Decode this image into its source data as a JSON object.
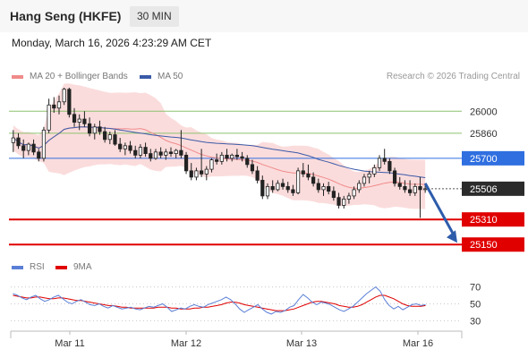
{
  "header": {
    "title": "Hang Seng (HKFE)",
    "timeframe": "30 MIN"
  },
  "timestamp": "Monday, March 16, 2026 4:23:29 AM CET",
  "legend": {
    "bollinger": "MA 20 + Bollinger Bands",
    "ma50": "MA 50",
    "copyright": "Research © 2026 Trading Central",
    "rsi": "RSI",
    "rsi_ma": "9MA"
  },
  "colors": {
    "resistance": "#8dc26f",
    "pivot": "#2f6fe0",
    "support": "#e00000",
    "bollinger_fill": "#fbdcdc",
    "ma20": "#f08a8a",
    "ma50": "#3a5aa8",
    "bull": "#ffffff",
    "bear": "#222222",
    "rsi": "#5b7fd6",
    "rsi_ma": "#e00000",
    "arrow": "#2d5cab"
  },
  "chart_data": [
    {
      "type": "candlestick",
      "x_ticks": [
        "Mar 11",
        "Mar 12",
        "Mar 13",
        "Mar 16"
      ],
      "y_range": [
        25100,
        26150
      ],
      "levels": [
        {
          "value": 26000,
          "label": "26000",
          "kind": "resistance"
        },
        {
          "value": 25860,
          "label": "25860",
          "kind": "resistance"
        },
        {
          "value": 25700,
          "label": "25700",
          "kind": "pivot"
        },
        {
          "value": 25506,
          "label": "25506",
          "kind": "last"
        },
        {
          "value": 25310,
          "label": "25310",
          "kind": "support"
        },
        {
          "value": 25150,
          "label": "25150",
          "kind": "support"
        }
      ],
      "last_price": 25506,
      "forecast_target": 25150,
      "candles": [
        [
          25800,
          25880,
          25740,
          25830
        ],
        [
          25830,
          25860,
          25760,
          25780
        ],
        [
          25780,
          25820,
          25700,
          25750
        ],
        [
          25750,
          25800,
          25720,
          25790
        ],
        [
          25790,
          25820,
          25720,
          25740
        ],
        [
          25740,
          25760,
          25680,
          25700
        ],
        [
          25700,
          25900,
          25680,
          25880
        ],
        [
          25880,
          26080,
          25860,
          26040
        ],
        [
          26040,
          26090,
          25990,
          26020
        ],
        [
          26020,
          26100,
          25980,
          26060
        ],
        [
          26060,
          26150,
          26040,
          26140
        ],
        [
          26140,
          26150,
          25960,
          25980
        ],
        [
          25980,
          26020,
          25900,
          25930
        ],
        [
          25930,
          25980,
          25880,
          25950
        ],
        [
          25950,
          26000,
          25900,
          25920
        ],
        [
          25920,
          25960,
          25840,
          25860
        ],
        [
          25860,
          25920,
          25820,
          25900
        ],
        [
          25900,
          25940,
          25850,
          25870
        ],
        [
          25870,
          25900,
          25800,
          25820
        ],
        [
          25820,
          25870,
          25790,
          25850
        ],
        [
          25850,
          25880,
          25780,
          25790
        ],
        [
          25790,
          25830,
          25740,
          25760
        ],
        [
          25760,
          25800,
          25720,
          25780
        ],
        [
          25780,
          25810,
          25730,
          25750
        ],
        [
          25750,
          25780,
          25700,
          25720
        ],
        [
          25720,
          25790,
          25700,
          25770
        ],
        [
          25770,
          25800,
          25710,
          25730
        ],
        [
          25730,
          25760,
          25680,
          25700
        ],
        [
          25700,
          25760,
          25690,
          25740
        ],
        [
          25740,
          25770,
          25700,
          25720
        ],
        [
          25720,
          25760,
          25690,
          25740
        ],
        [
          25740,
          25770,
          25710,
          25730
        ],
        [
          25730,
          25760,
          25700,
          25750
        ],
        [
          25750,
          25880,
          25700,
          25720
        ],
        [
          25720,
          25740,
          25600,
          25620
        ],
        [
          25620,
          25670,
          25560,
          25580
        ],
        [
          25580,
          25640,
          25560,
          25620
        ],
        [
          25620,
          25760,
          25580,
          25600
        ],
        [
          25600,
          25650,
          25560,
          25630
        ],
        [
          25630,
          25700,
          25610,
          25690
        ],
        [
          25690,
          25730,
          25660,
          25680
        ],
        [
          25680,
          25740,
          25660,
          25720
        ],
        [
          25720,
          25760,
          25680,
          25700
        ],
        [
          25700,
          25730,
          25680,
          25720
        ],
        [
          25720,
          25760,
          25690,
          25710
        ],
        [
          25710,
          25740,
          25680,
          25700
        ],
        [
          25700,
          25720,
          25640,
          25660
        ],
        [
          25660,
          25690,
          25600,
          25620
        ],
        [
          25620,
          25650,
          25540,
          25560
        ],
        [
          25560,
          25590,
          25440,
          25460
        ],
        [
          25460,
          25540,
          25440,
          25520
        ],
        [
          25520,
          25560,
          25480,
          25500
        ],
        [
          25500,
          25560,
          25490,
          25540
        ],
        [
          25540,
          25570,
          25500,
          25520
        ],
        [
          25520,
          25550,
          25480,
          25500
        ],
        [
          25500,
          25530,
          25460,
          25480
        ],
        [
          25480,
          25640,
          25470,
          25620
        ],
        [
          25620,
          25670,
          25580,
          25600
        ],
        [
          25600,
          25660,
          25560,
          25580
        ],
        [
          25580,
          25610,
          25520,
          25540
        ],
        [
          25540,
          25570,
          25480,
          25500
        ],
        [
          25500,
          25540,
          25460,
          25520
        ],
        [
          25520,
          25550,
          25470,
          25490
        ],
        [
          25490,
          25520,
          25430,
          25450
        ],
        [
          25450,
          25480,
          25380,
          25400
        ],
        [
          25400,
          25460,
          25380,
          25440
        ],
        [
          25440,
          25480,
          25410,
          25460
        ],
        [
          25460,
          25520,
          25440,
          25500
        ],
        [
          25500,
          25560,
          25480,
          25540
        ],
        [
          25540,
          25600,
          25520,
          25580
        ],
        [
          25580,
          25620,
          25540,
          25600
        ],
        [
          25600,
          25660,
          25580,
          25640
        ],
        [
          25640,
          25720,
          25620,
          25700
        ],
        [
          25700,
          25760,
          25660,
          25680
        ],
        [
          25680,
          25700,
          25600,
          25620
        ],
        [
          25620,
          25640,
          25520,
          25540
        ],
        [
          25540,
          25580,
          25500,
          25520
        ],
        [
          25520,
          25560,
          25480,
          25500
        ],
        [
          25500,
          25560,
          25460,
          25480
        ],
        [
          25480,
          25540,
          25460,
          25520
        ],
        [
          25520,
          25580,
          25320,
          25500
        ],
        [
          25500,
          25540,
          25480,
          25506
        ]
      ],
      "forecast_arrow": {
        "from_candle": 81,
        "from_value": 25540,
        "to_value": 25150
      }
    },
    {
      "type": "line",
      "y_ticks": [
        30,
        50,
        70
      ],
      "y_range": [
        22,
        78
      ],
      "series": [
        {
          "name": "RSI",
          "values": [
            62,
            60,
            57,
            55,
            58,
            60,
            56,
            53,
            55,
            58,
            60,
            56,
            52,
            50,
            53,
            55,
            52,
            49,
            48,
            50,
            47,
            45,
            48,
            46,
            44,
            45,
            46,
            44,
            43,
            45,
            47,
            46,
            48,
            50,
            46,
            41,
            43,
            45,
            44,
            47,
            49,
            47,
            46,
            49,
            51,
            53,
            55,
            58,
            55,
            50,
            44,
            40,
            43,
            46,
            49,
            44,
            40,
            38,
            41,
            40,
            42,
            46,
            48,
            55,
            61,
            57,
            52,
            49,
            52,
            51,
            49,
            46,
            43,
            41,
            44,
            47,
            52,
            57,
            62,
            66,
            70,
            65,
            55,
            48,
            44,
            47,
            43,
            46,
            49,
            50,
            48,
            49
          ]
        },
        {
          "name": "9MA",
          "values": [
            60,
            59,
            58,
            57,
            57,
            58,
            58,
            57,
            56,
            56,
            57,
            57,
            56,
            55,
            54,
            54,
            53,
            52,
            51,
            50,
            49,
            48,
            48,
            47,
            46,
            46,
            45,
            45,
            45,
            45,
            45,
            45,
            46,
            46,
            46,
            45,
            45,
            44,
            44,
            44,
            45,
            45,
            46,
            46,
            47,
            48,
            49,
            51,
            52,
            52,
            51,
            49,
            48,
            47,
            46,
            45,
            44,
            43,
            42,
            42,
            42,
            43,
            44,
            46,
            48,
            50,
            52,
            53,
            53,
            52,
            51,
            50,
            48,
            47,
            46,
            46,
            47,
            49,
            52,
            55,
            58,
            60,
            60,
            58,
            56,
            53,
            50,
            48,
            47,
            47,
            47,
            48
          ]
        }
      ]
    }
  ]
}
